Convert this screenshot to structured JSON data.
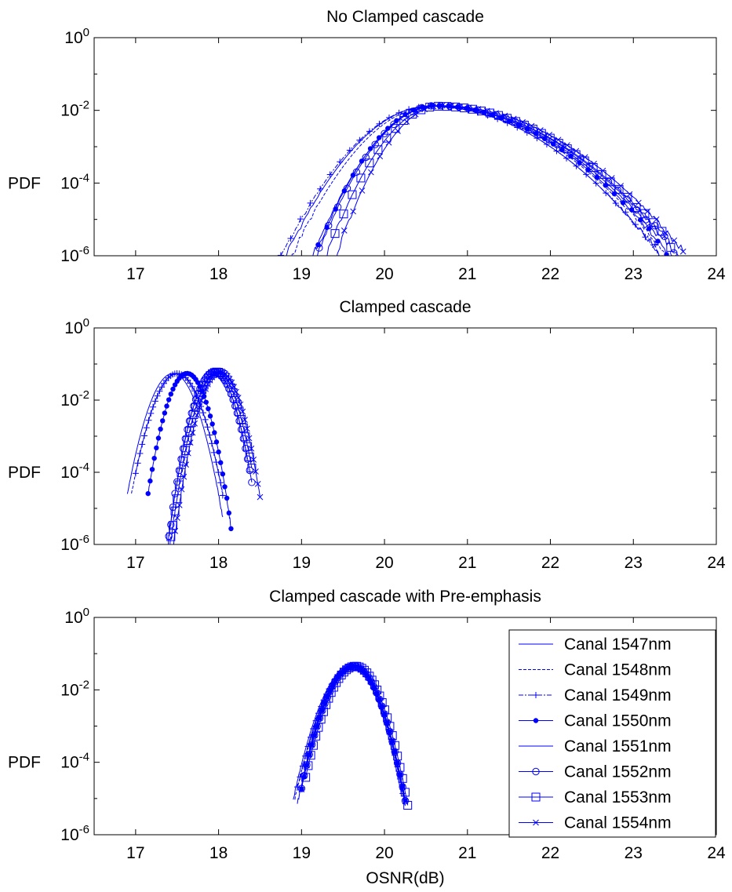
{
  "figure": {
    "xlabel": "OSNR(dB)"
  },
  "chart_data": [
    {
      "type": "line",
      "title": "No Clamped cascade",
      "xlabel": "",
      "ylabel": "PDF",
      "xlim": [
        16.5,
        24
      ],
      "ylim_log10": [
        -6,
        0
      ],
      "yscale": "log",
      "grid": false,
      "xticks": [
        "17",
        "18",
        "19",
        "20",
        "21",
        "22",
        "23",
        "24"
      ],
      "yticks": [
        {
          "base": "10",
          "exp": "0"
        },
        {
          "base": "10",
          "exp": "-2"
        },
        {
          "base": "10",
          "exp": "-4"
        },
        {
          "base": "10",
          "exp": "-6"
        }
      ],
      "series": [
        {
          "name": "Canal 1547nm",
          "marker": "none",
          "mu": 20.55,
          "sigL": 0.4,
          "sigR": 0.64,
          "peak": 0.013,
          "xmin": 18.7,
          "xmax": 23.35
        },
        {
          "name": "Canal 1548nm",
          "marker": "none",
          "mu": 20.58,
          "sigL": 0.39,
          "sigR": 0.65,
          "peak": 0.013,
          "xmin": 18.8,
          "xmax": 23.45
        },
        {
          "name": "Canal 1549nm",
          "marker": "plus",
          "mu": 20.55,
          "sigL": 0.41,
          "sigR": 0.64,
          "peak": 0.013,
          "xmin": 18.75,
          "xmax": 23.5
        },
        {
          "name": "Canal 1550nm",
          "marker": "dot",
          "mu": 20.6,
          "sigL": 0.33,
          "sigR": 0.65,
          "peak": 0.0135,
          "xmin": 19.2,
          "xmax": 23.4
        },
        {
          "name": "Canal 1551nm",
          "marker": "none",
          "mu": 20.62,
          "sigL": 0.34,
          "sigR": 0.66,
          "peak": 0.013,
          "xmin": 19.0,
          "xmax": 23.3
        },
        {
          "name": "Canal 1552nm",
          "marker": "circle",
          "mu": 20.62,
          "sigL": 0.33,
          "sigR": 0.67,
          "peak": 0.0135,
          "xmin": 19.1,
          "xmax": 23.6
        },
        {
          "name": "Canal 1553nm",
          "marker": "square",
          "mu": 20.65,
          "sigL": 0.31,
          "sigR": 0.67,
          "peak": 0.013,
          "xmin": 19.3,
          "xmax": 23.45
        },
        {
          "name": "Canal 1554nm",
          "marker": "cross",
          "mu": 20.68,
          "sigL": 0.29,
          "sigR": 0.68,
          "peak": 0.0135,
          "xmin": 19.3,
          "xmax": 23.6
        }
      ]
    },
    {
      "type": "line",
      "title": "Clamped cascade",
      "xlabel": "",
      "ylabel": "PDF",
      "xlim": [
        16.5,
        24
      ],
      "ylim_log10": [
        -6,
        0
      ],
      "yscale": "log",
      "grid": false,
      "xticks": [
        "17",
        "18",
        "19",
        "20",
        "21",
        "22",
        "23",
        "24"
      ],
      "yticks": [
        {
          "base": "10",
          "exp": "0"
        },
        {
          "base": "10",
          "exp": "-2"
        },
        {
          "base": "10",
          "exp": "-4"
        },
        {
          "base": "10",
          "exp": "-6"
        }
      ],
      "series": [
        {
          "name": "Canal 1547nm",
          "marker": "none",
          "mu": 17.45,
          "sigL": 0.14,
          "sigR": 0.14,
          "peak": 0.055,
          "xmin": 16.9,
          "xmax": 18.05
        },
        {
          "name": "Canal 1548nm",
          "marker": "none",
          "mu": 17.5,
          "sigL": 0.14,
          "sigR": 0.14,
          "peak": 0.055,
          "xmin": 16.95,
          "xmax": 18.05
        },
        {
          "name": "Canal 1549nm",
          "marker": "plus",
          "mu": 17.5,
          "sigL": 0.14,
          "sigR": 0.14,
          "peak": 0.055,
          "xmin": 17.0,
          "xmax": 18.05
        },
        {
          "name": "Canal 1550nm",
          "marker": "dot",
          "mu": 17.62,
          "sigL": 0.12,
          "sigR": 0.12,
          "peak": 0.055,
          "xmin": 17.15,
          "xmax": 18.15
        },
        {
          "name": "Canal 1551nm",
          "marker": "none",
          "mu": 17.95,
          "sigL": 0.12,
          "sigR": 0.12,
          "peak": 0.06,
          "xmin": 17.35,
          "xmax": 18.35
        },
        {
          "name": "Canal 1552nm",
          "marker": "circle",
          "mu": 17.95,
          "sigL": 0.12,
          "sigR": 0.12,
          "peak": 0.06,
          "xmin": 17.4,
          "xmax": 18.4
        },
        {
          "name": "Canal 1553nm",
          "marker": "square",
          "mu": 17.98,
          "sigL": 0.12,
          "sigR": 0.12,
          "peak": 0.06,
          "xmin": 17.4,
          "xmax": 18.4
        },
        {
          "name": "Canal 1554nm",
          "marker": "cross",
          "mu": 18.02,
          "sigL": 0.12,
          "sigR": 0.12,
          "peak": 0.06,
          "xmin": 17.45,
          "xmax": 18.5
        }
      ]
    },
    {
      "type": "line",
      "title": "Clamped cascade with Pre-emphasis",
      "xlabel": "OSNR(dB)",
      "ylabel": "PDF",
      "xlim": [
        16.5,
        24
      ],
      "ylim_log10": [
        -6,
        0
      ],
      "yscale": "log",
      "grid": false,
      "legend": "top-right",
      "xticks": [
        "17",
        "18",
        "19",
        "20",
        "21",
        "22",
        "23",
        "24"
      ],
      "yticks": [
        {
          "base": "10",
          "exp": "0"
        },
        {
          "base": "10",
          "exp": "-2"
        },
        {
          "base": "10",
          "exp": "-4"
        },
        {
          "base": "10",
          "exp": "-6"
        }
      ],
      "series": [
        {
          "name": "Canal 1547nm",
          "marker": "none",
          "mu": 19.6,
          "sigL": 0.17,
          "sigR": 0.15,
          "peak": 0.045,
          "xmin": 18.9,
          "xmax": 20.2
        },
        {
          "name": "Canal 1548nm",
          "marker": "none",
          "mu": 19.62,
          "sigL": 0.17,
          "sigR": 0.15,
          "peak": 0.045,
          "xmin": 18.92,
          "xmax": 20.22
        },
        {
          "name": "Canal 1549nm",
          "marker": "plus",
          "mu": 19.62,
          "sigL": 0.17,
          "sigR": 0.15,
          "peak": 0.045,
          "xmin": 18.95,
          "xmax": 20.22
        },
        {
          "name": "Canal 1550nm",
          "marker": "dot",
          "mu": 19.63,
          "sigL": 0.16,
          "sigR": 0.15,
          "peak": 0.045,
          "xmin": 19.0,
          "xmax": 20.25
        },
        {
          "name": "Canal 1551nm",
          "marker": "none",
          "mu": 19.62,
          "sigL": 0.16,
          "sigR": 0.15,
          "peak": 0.045,
          "xmin": 18.95,
          "xmax": 20.25
        },
        {
          "name": "Canal 1552nm",
          "marker": "circle",
          "mu": 19.63,
          "sigL": 0.16,
          "sigR": 0.15,
          "peak": 0.045,
          "xmin": 19.0,
          "xmax": 20.25
        },
        {
          "name": "Canal 1553nm",
          "marker": "square",
          "mu": 19.65,
          "sigL": 0.16,
          "sigR": 0.15,
          "peak": 0.045,
          "xmin": 19.05,
          "xmax": 20.28
        },
        {
          "name": "Canal 1554nm",
          "marker": "cross",
          "mu": 19.63,
          "sigL": 0.16,
          "sigR": 0.15,
          "peak": 0.045,
          "xmin": 19.0,
          "xmax": 20.25
        }
      ]
    }
  ],
  "style": {
    "series_color": "#0000ff",
    "axis_color": "#000000",
    "background": "#ffffff"
  }
}
